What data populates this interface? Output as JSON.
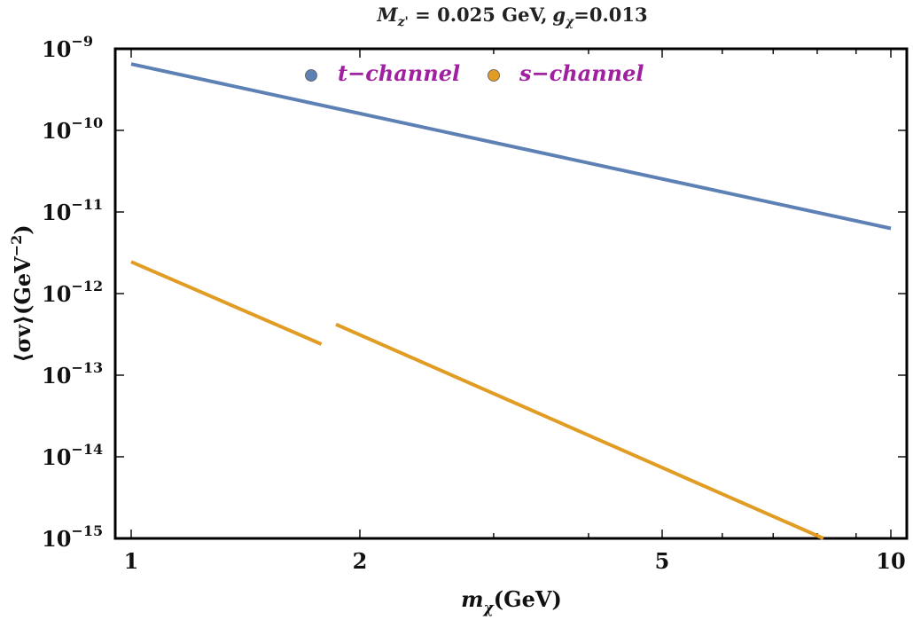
{
  "chart_data": {
    "type": "line",
    "title": {
      "mass_symbol": "M",
      "mass_subscript": "z'",
      "mass_value": " = 0.025 GeV,",
      "coupling_symbol": "g",
      "coupling_subscript": "χ",
      "coupling_value": "=0.013"
    },
    "xlabel": {
      "symbol": "m",
      "subscript": "χ",
      "unit": "(GeV)"
    },
    "ylabel": "⟨σv⟩(GeV",
    "ylabel_exp": "−2",
    "ylabel_close": ")",
    "x_scale": "log",
    "y_scale": "log",
    "xlim": [
      1,
      10.4
    ],
    "ylim": [
      1e-15,
      1e-09
    ],
    "x_ticks": [
      {
        "value": 1,
        "label": "1"
      },
      {
        "value": 2,
        "label": "2"
      },
      {
        "value": 5,
        "label": "5"
      },
      {
        "value": 10,
        "label": "10"
      }
    ],
    "y_ticks": [
      {
        "value": 1e-09,
        "base": "10",
        "exp": "−9"
      },
      {
        "value": 1e-10,
        "base": "10",
        "exp": "−10"
      },
      {
        "value": 1e-11,
        "base": "10",
        "exp": "−11"
      },
      {
        "value": 1e-12,
        "base": "10",
        "exp": "−12"
      },
      {
        "value": 1e-13,
        "base": "10",
        "exp": "−13"
      },
      {
        "value": 1e-14,
        "base": "10",
        "exp": "−14"
      },
      {
        "value": 1e-15,
        "base": "10",
        "exp": "−15"
      }
    ],
    "grid": false,
    "legend_position": "top-center",
    "series": [
      {
        "name": "t−channel",
        "color": "#5e81b5",
        "segments": [
          [
            [
              1,
              6.5e-10
            ],
            [
              10,
              6.3e-12
            ]
          ]
        ]
      },
      {
        "name": "s−channel",
        "color": "#e19c24",
        "segments": [
          [
            [
              1,
              2.45e-12
            ],
            [
              1.78,
              2.4e-13
            ]
          ],
          [
            [
              1.86,
              4.2e-13
            ],
            [
              8.15,
              1e-15
            ]
          ]
        ]
      }
    ],
    "legend_text_color": "#a020a0"
  }
}
